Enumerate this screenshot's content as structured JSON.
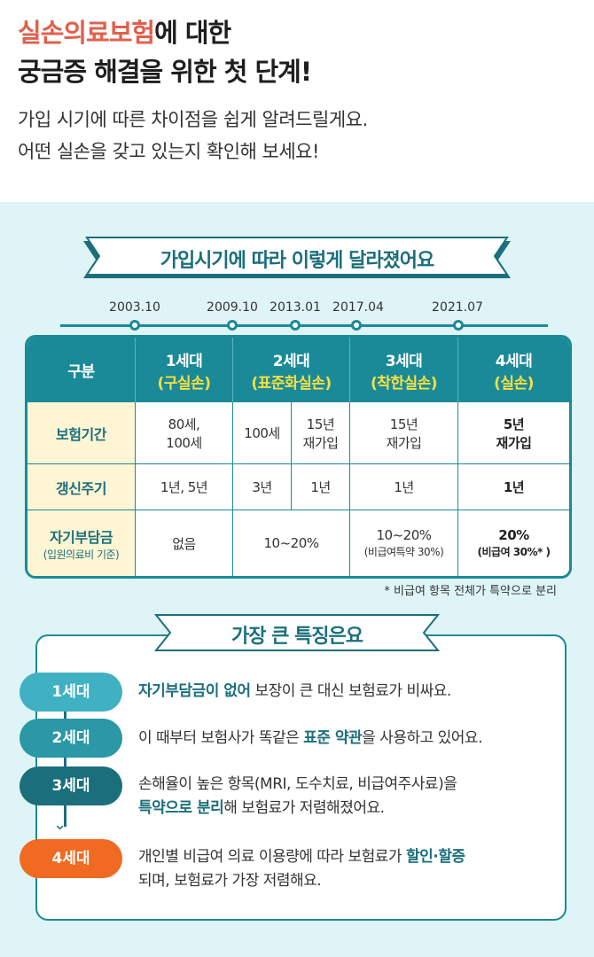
{
  "header": {
    "title_accent": "실손의료보험",
    "title_rest_1": "에 대한",
    "title_line2": "궁금증 해결을 위한 첫 단계!",
    "lead_1": "가입 시기에 따른 차이점을 쉽게 알려드릴게요.",
    "lead_2": "어떤 실손을 갖고 있는지 확인해 보세요!"
  },
  "section1": {
    "title": "가입시기에 따라 이렇게 달라졌어요",
    "timeline": [
      "2003.10",
      "2009.10",
      "2013.01",
      "2017.04",
      "2021.07"
    ]
  },
  "table": {
    "head": {
      "label": "구분",
      "gen1": "1세대",
      "gen1_sub": "(구실손)",
      "gen2": "2세대",
      "gen2_sub": "(표준화실손)",
      "gen3": "3세대",
      "gen3_sub": "(착한실손)",
      "gen4": "4세대",
      "gen4_sub": "(실손)"
    },
    "row1": {
      "label": "보험기간",
      "g1_a": "80세,",
      "g1_b": "100세",
      "g2a": "100세",
      "g2b_a": "15년",
      "g2b_b": "재가입",
      "g3_a": "15년",
      "g3_b": "재가입",
      "g4_a": "5년",
      "g4_b": "재가입"
    },
    "row2": {
      "label": "갱신주기",
      "g1": "1년, 5년",
      "g2a": "3년",
      "g2b": "1년",
      "g3": "1년",
      "g4": "1년"
    },
    "row3": {
      "label": "자기부담금",
      "label_sub": "(입원의료비 기준)",
      "g1": "없음",
      "g2": "10~20%",
      "g3_a": "10~20%",
      "g3_b": "(비급여특약 30%)",
      "g4_a": "20%",
      "g4_b": "(비급여 30%* )"
    }
  },
  "note": "* 비급여 항목 전체가 특약으로 분리",
  "section2": {
    "title": "가장 큰 특징은요",
    "items": [
      {
        "label": "1세대",
        "color": "#3fb1c2",
        "pre": "",
        "em": "자기부담금이 없어",
        "post": " 보장이 큰 대신 보험료가 비싸요.",
        "line2": ""
      },
      {
        "label": "2세대",
        "color": "#2a98a5",
        "pre": "이 때부터 보험사가 똑같은 ",
        "em": "표준 약관",
        "post": "을 사용하고 있어요.",
        "line2": ""
      },
      {
        "label": "3세대",
        "color": "#1b6f7c",
        "pre": "손해율이 높은 항목(MRI, 도수치료, 비급여주사료)을",
        "em": "",
        "post": "",
        "line2_em": "특약으로 분리",
        "line2_post": "해 보험료가 저렴해졌어요."
      },
      {
        "label": "4세대",
        "color": "#f06a21",
        "pre": "개인별 비급여 의료 이용량에 따라 보험료가 ",
        "em": "할인·할증",
        "post": "",
        "line2_plain": "되며, 보험료가 가장 저렴해요."
      }
    ]
  }
}
